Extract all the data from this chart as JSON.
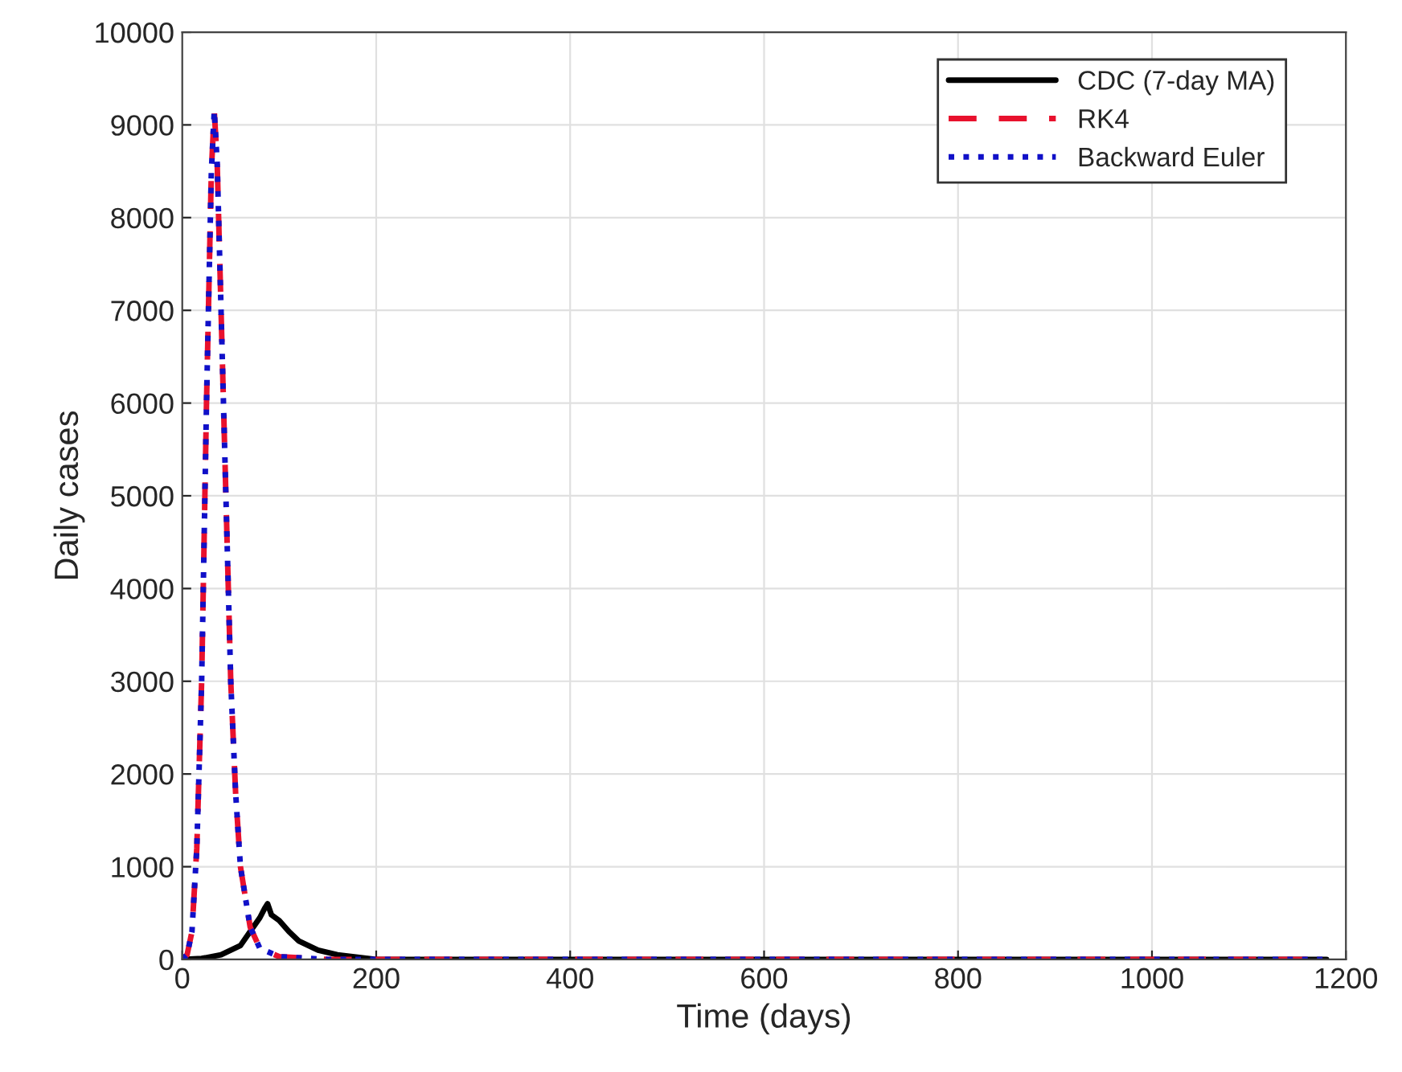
{
  "chart_data": {
    "type": "line",
    "xlabel": "Time (days)",
    "ylabel": "Daily cases",
    "xlim": [
      0,
      1200
    ],
    "xticks": [
      0,
      200,
      400,
      600,
      800,
      1000,
      1200
    ],
    "ylim": [
      0,
      10000
    ],
    "yticks": [
      0,
      1000,
      2000,
      3000,
      4000,
      5000,
      6000,
      7000,
      8000,
      9000,
      10000
    ],
    "grid": true,
    "legend": "top right",
    "series": [
      {
        "name": "CDC (7-day MA)",
        "color": "#000000",
        "line_style": "solid",
        "x": [
          0,
          20,
          40,
          60,
          70,
          80,
          85,
          88,
          92,
          100,
          110,
          120,
          140,
          160,
          200,
          300,
          600,
          900,
          1180
        ],
        "values": [
          0,
          10,
          50,
          150,
          300,
          450,
          550,
          600,
          480,
          420,
          300,
          200,
          100,
          50,
          0,
          0,
          0,
          0,
          0
        ]
      },
      {
        "name": "RK4",
        "color": "#e8112d",
        "line_style": "dashed",
        "x": [
          0,
          5,
          10,
          15,
          20,
          25,
          30,
          33,
          36,
          40,
          45,
          50,
          55,
          60,
          70,
          80,
          100,
          150,
          200,
          600,
          1180
        ],
        "values": [
          0,
          50,
          300,
          1200,
          3000,
          6000,
          8500,
          9150,
          8600,
          7000,
          5000,
          3000,
          1800,
          1000,
          350,
          120,
          30,
          0,
          0,
          0,
          0
        ]
      },
      {
        "name": "Backward Euler",
        "color": "#1010c8",
        "line_style": "dotted",
        "x": [
          0,
          5,
          10,
          15,
          20,
          25,
          30,
          33,
          36,
          40,
          45,
          50,
          55,
          60,
          70,
          80,
          100,
          150,
          200,
          600,
          1180
        ],
        "values": [
          0,
          50,
          300,
          1200,
          3000,
          6000,
          8500,
          9150,
          8600,
          7000,
          5000,
          3000,
          1800,
          1000,
          350,
          120,
          30,
          0,
          0,
          0,
          0
        ]
      }
    ]
  }
}
